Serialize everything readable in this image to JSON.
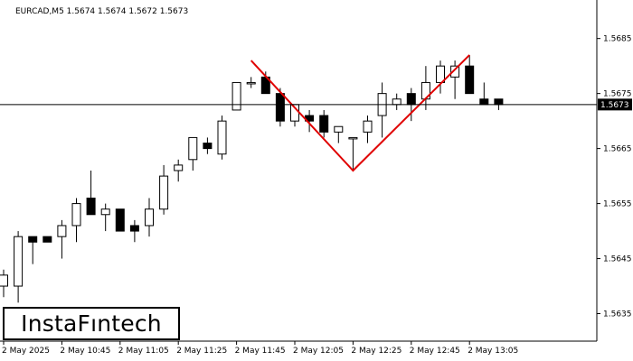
{
  "chart_data": {
    "type": "candlestick",
    "symbol_line": "EURCAD,M5  1.5674 1.5674 1.5672 1.5673",
    "current_price": 1.5673,
    "current_price_label": "1.5673",
    "ylim": [
      1.563,
      1.5692
    ],
    "y_ticks": [
      {
        "value": 1.5685,
        "label": "1.5685"
      },
      {
        "value": 1.5675,
        "label": "1.5675"
      },
      {
        "value": 1.5665,
        "label": "1.5665"
      },
      {
        "value": 1.5655,
        "label": "1.5655"
      },
      {
        "value": 1.5645,
        "label": "1.5645"
      },
      {
        "value": 1.5635,
        "label": "1.5635"
      }
    ],
    "x_ticks": [
      {
        "bar": 0,
        "label": "2 May 2025"
      },
      {
        "bar": 4,
        "label": "2 May 10:45"
      },
      {
        "bar": 8,
        "label": "2 May 11:05"
      },
      {
        "bar": 12,
        "label": "2 May 11:25"
      },
      {
        "bar": 16,
        "label": "2 May 11:45"
      },
      {
        "bar": 20,
        "label": "2 May 12:05"
      },
      {
        "bar": 24,
        "label": "2 May 12:25"
      },
      {
        "bar": 28,
        "label": "2 May 12:45"
      },
      {
        "bar": 32,
        "label": "2 May 13:05"
      }
    ],
    "candles": [
      {
        "o": 1.564,
        "h": 1.5643,
        "l": 1.5638,
        "c": 1.5642
      },
      {
        "o": 1.564,
        "h": 1.565,
        "l": 1.5637,
        "c": 1.5649
      },
      {
        "o": 1.5649,
        "h": 1.5649,
        "l": 1.5644,
        "c": 1.5648
      },
      {
        "o": 1.5649,
        "h": 1.5649,
        "l": 1.5648,
        "c": 1.5648
      },
      {
        "o": 1.5649,
        "h": 1.5652,
        "l": 1.5645,
        "c": 1.5651
      },
      {
        "o": 1.5651,
        "h": 1.5656,
        "l": 1.5648,
        "c": 1.5655
      },
      {
        "o": 1.5656,
        "h": 1.5661,
        "l": 1.5653,
        "c": 1.5653
      },
      {
        "o": 1.5653,
        "h": 1.5655,
        "l": 1.565,
        "c": 1.5654
      },
      {
        "o": 1.5654,
        "h": 1.5654,
        "l": 1.565,
        "c": 1.565
      },
      {
        "o": 1.5651,
        "h": 1.5652,
        "l": 1.5648,
        "c": 1.565
      },
      {
        "o": 1.5651,
        "h": 1.5656,
        "l": 1.5649,
        "c": 1.5654
      },
      {
        "o": 1.5654,
        "h": 1.5662,
        "l": 1.5653,
        "c": 1.566
      },
      {
        "o": 1.5661,
        "h": 1.5663,
        "l": 1.5659,
        "c": 1.5662
      },
      {
        "o": 1.5663,
        "h": 1.5667,
        "l": 1.5661,
        "c": 1.5667
      },
      {
        "o": 1.5666,
        "h": 1.5667,
        "l": 1.5664,
        "c": 1.5665
      },
      {
        "o": 1.5664,
        "h": 1.5671,
        "l": 1.5663,
        "c": 1.567
      },
      {
        "o": 1.5672,
        "h": 1.5677,
        "l": 1.5672,
        "c": 1.5677
      },
      {
        "o": 1.5677,
        "h": 1.5678,
        "l": 1.5676,
        "c": 1.5677
      },
      {
        "o": 1.5678,
        "h": 1.5679,
        "l": 1.5675,
        "c": 1.5675
      },
      {
        "o": 1.5675,
        "h": 1.5676,
        "l": 1.5669,
        "c": 1.567
      },
      {
        "o": 1.567,
        "h": 1.5673,
        "l": 1.5669,
        "c": 1.5673
      },
      {
        "o": 1.5671,
        "h": 1.5672,
        "l": 1.5668,
        "c": 1.567
      },
      {
        "o": 1.5671,
        "h": 1.5672,
        "l": 1.5667,
        "c": 1.5668
      },
      {
        "o": 1.5668,
        "h": 1.5669,
        "l": 1.5666,
        "c": 1.5669
      },
      {
        "o": 1.5667,
        "h": 1.5667,
        "l": 1.5661,
        "c": 1.5667
      },
      {
        "o": 1.5668,
        "h": 1.5671,
        "l": 1.5666,
        "c": 1.567
      },
      {
        "o": 1.5671,
        "h": 1.5677,
        "l": 1.5667,
        "c": 1.5675
      },
      {
        "o": 1.5673,
        "h": 1.5675,
        "l": 1.5672,
        "c": 1.5674
      },
      {
        "o": 1.5675,
        "h": 1.5676,
        "l": 1.567,
        "c": 1.5673
      },
      {
        "o": 1.5674,
        "h": 1.568,
        "l": 1.5672,
        "c": 1.5677
      },
      {
        "o": 1.5677,
        "h": 1.5681,
        "l": 1.5675,
        "c": 1.568
      },
      {
        "o": 1.5678,
        "h": 1.5681,
        "l": 1.5674,
        "c": 1.568
      },
      {
        "o": 1.568,
        "h": 1.5682,
        "l": 1.5675,
        "c": 1.5675
      },
      {
        "o": 1.5674,
        "h": 1.5677,
        "l": 1.5673,
        "c": 1.5673
      },
      {
        "o": 1.5674,
        "h": 1.5674,
        "l": 1.5672,
        "c": 1.5673
      }
    ],
    "pattern_line": [
      {
        "bar": 17,
        "price": 1.5681
      },
      {
        "bar": 24,
        "price": 1.5661
      },
      {
        "bar": 32,
        "price": 1.5682
      }
    ],
    "pattern_color": "#e00000",
    "bull_color": "#ffffff",
    "bear_color": "#000000",
    "grid": false
  },
  "logo": {
    "text": "InstaFıntech"
  }
}
